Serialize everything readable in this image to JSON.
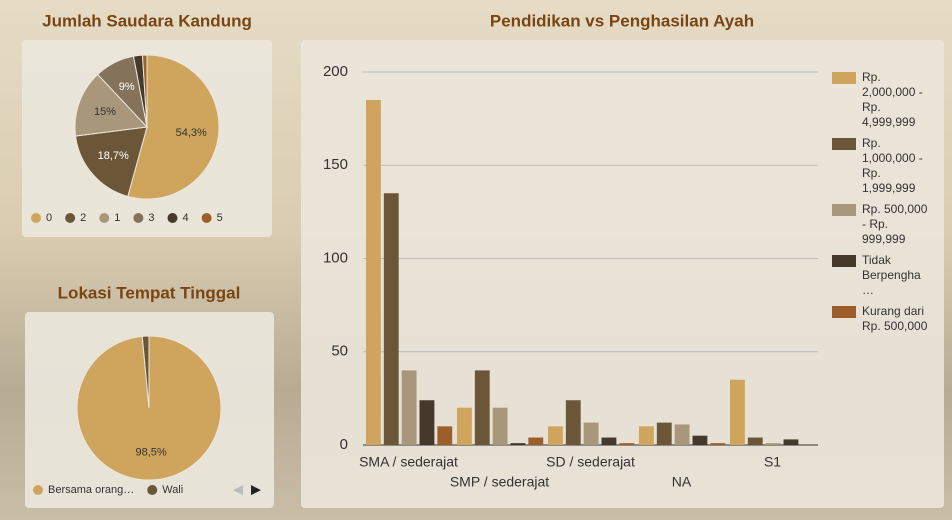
{
  "chart_data": [
    {
      "type": "pie",
      "title": "Jumlah Saudara Kandung",
      "categories": [
        "0",
        "2",
        "1",
        "3",
        "4",
        "5"
      ],
      "values": [
        54.3,
        18.7,
        15,
        9,
        2,
        1
      ],
      "value_labels": [
        "54,3%",
        "18,7%",
        "15%",
        "9%",
        null,
        null
      ],
      "colors": [
        "#cfa45c",
        "#6b5738",
        "#a8977a",
        "#84735a",
        "#45392c",
        "#9c5f2b"
      ]
    },
    {
      "type": "pie",
      "title": "Lokasi Tempat Tinggal",
      "categories": [
        "Bersama orang…",
        "Wali"
      ],
      "values": [
        98.5,
        1.5
      ],
      "value_labels": [
        "98,5%",
        null
      ],
      "colors": [
        "#cfa45c",
        "#6b5738"
      ]
    },
    {
      "type": "bar",
      "title": "Pendidikan vs Penghasilan Ayah",
      "categories": [
        "SMA / sederajat",
        "SMP / sederajat",
        "SD / sederajat",
        "NA",
        "S1"
      ],
      "series": [
        {
          "name": "Rp. 2,000,000 - Rp. 4,999,999",
          "color": "#cfa45c",
          "values": [
            185,
            20,
            10,
            10,
            35
          ]
        },
        {
          "name": "Rp. 1,000,000 - Rp. 1,999,999",
          "color": "#6b5738",
          "values": [
            135,
            40,
            24,
            12,
            4
          ]
        },
        {
          "name": "Rp. 500,000 - Rp. 999,999",
          "color": "#a8977a",
          "values": [
            40,
            20,
            12,
            11,
            1
          ]
        },
        {
          "name": "Tidak Berpengha…",
          "color": "#45392c",
          "values": [
            24,
            1,
            4,
            5,
            3
          ]
        },
        {
          "name": "Kurang dari Rp. 500,000",
          "color": "#9c5f2b",
          "values": [
            10,
            4,
            1,
            1,
            0
          ]
        }
      ],
      "ylim": [
        0,
        200
      ],
      "yticks": [
        0,
        50,
        100,
        150,
        200
      ],
      "grid": true
    }
  ]
}
